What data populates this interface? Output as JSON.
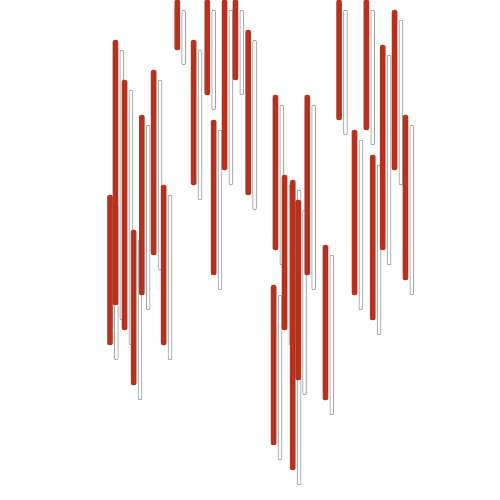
{
  "chart_data": {
    "type": "bar",
    "tick_labels": false,
    "grid": false,
    "xlim": [
      0,
      500
    ],
    "ylim": [
      0,
      500
    ],
    "series": [
      {
        "color": "#b5321f",
        "x": [
          96,
          102,
          112,
          122,
          131,
          144,
          155,
          170,
          188,
          203,
          210,
          222,
          234,
          248,
          276,
          278,
          288,
          297,
          303,
          313,
          333,
          348,
          365,
          378,
          385,
          396,
          409,
          421
        ],
        "values": [
          [
            155,
            305
          ],
          [
            195,
            460
          ],
          [
            170,
            420
          ],
          [
            115,
            270
          ],
          [
            205,
            385
          ],
          [
            245,
            430
          ],
          [
            155,
            315
          ],
          [
            450,
            500
          ],
          [
            315,
            460
          ],
          [
            405,
            500
          ],
          [
            225,
            380
          ],
          [
            330,
            500
          ],
          [
            420,
            500
          ],
          [
            305,
            470
          ],
          [
            55,
            215
          ],
          [
            250,
            405
          ],
          [
            170,
            325
          ],
          [
            30,
            320
          ],
          [
            120,
            300
          ],
          [
            225,
            405
          ],
          [
            100,
            255
          ],
          [
            380,
            500
          ],
          [
            205,
            370
          ],
          [
            370,
            500
          ],
          [
            180,
            345
          ],
          [
            250,
            455
          ],
          [
            330,
            490
          ],
          [
            220,
            385
          ]
        ]
      },
      {
        "color": "#9a9a9a",
        "x": [
          103,
          109,
          119,
          129,
          138,
          151,
          162,
          177,
          195,
          210,
          217,
          229,
          241,
          255,
          283,
          285,
          295,
          304,
          310,
          320,
          340,
          355,
          372,
          385,
          392,
          403,
          416,
          428
        ],
        "values": [
          [
            140,
            295
          ],
          [
            180,
            450
          ],
          [
            155,
            410
          ],
          [
            100,
            260
          ],
          [
            190,
            375
          ],
          [
            230,
            420
          ],
          [
            140,
            305
          ],
          [
            435,
            490
          ],
          [
            300,
            450
          ],
          [
            390,
            490
          ],
          [
            210,
            370
          ],
          [
            315,
            490
          ],
          [
            405,
            490
          ],
          [
            290,
            460
          ],
          [
            40,
            205
          ],
          [
            235,
            395
          ],
          [
            155,
            315
          ],
          [
            15,
            310
          ],
          [
            105,
            290
          ],
          [
            210,
            395
          ],
          [
            85,
            245
          ],
          [
            365,
            490
          ],
          [
            190,
            360
          ],
          [
            355,
            490
          ],
          [
            165,
            335
          ],
          [
            235,
            445
          ],
          [
            315,
            480
          ],
          [
            205,
            375
          ]
        ]
      }
    ]
  }
}
